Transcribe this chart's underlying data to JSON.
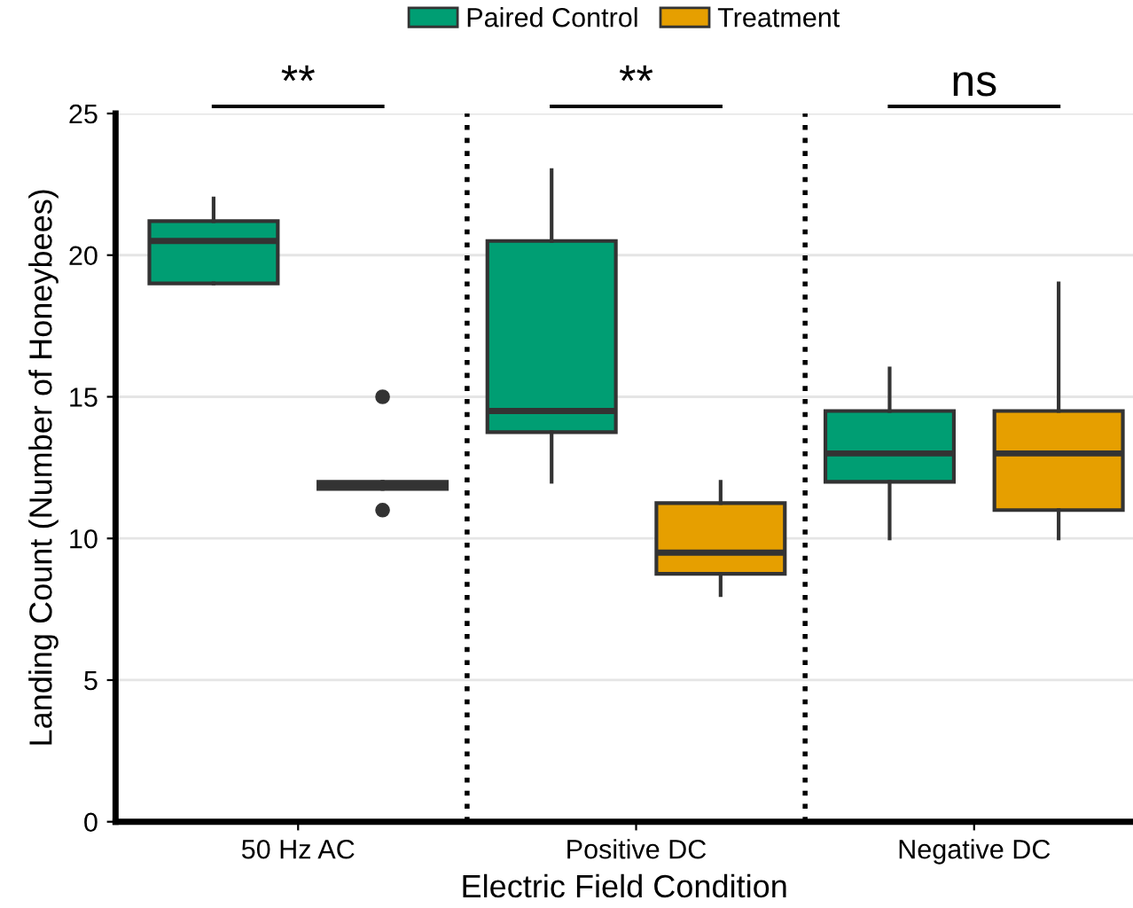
{
  "chart_data": {
    "type": "box",
    "xlabel": "Electric Field Condition",
    "ylabel": "Landing Count (Number of Honeybees)",
    "categories": [
      "50 Hz AC",
      "Positive DC",
      "Negative DC"
    ],
    "series": [
      {
        "name": "Paired Control",
        "color": "#009e73",
        "boxes": [
          {
            "low": 19,
            "q1": 19,
            "median": 20.5,
            "q3": 21.2,
            "high": 22
          },
          {
            "low": 12,
            "q1": 13.75,
            "median": 14.5,
            "q3": 20.5,
            "high": 23
          },
          {
            "low": 10,
            "q1": 12,
            "median": 13,
            "q3": 14.5,
            "high": 16
          }
        ]
      },
      {
        "name": "Treatment",
        "color": "#e69f00",
        "boxes": [
          {
            "low": 11.75,
            "q1": 11.75,
            "median": 11.9,
            "q3": 12,
            "high": 12,
            "outliers": [
              15,
              11
            ]
          },
          {
            "low": 8,
            "q1": 8.75,
            "median": 9.5,
            "q3": 11.25,
            "high": 12
          },
          {
            "low": 10,
            "q1": 11,
            "median": 13,
            "q3": 14.5,
            "high": 19
          }
        ]
      }
    ],
    "ylim": [
      0,
      25
    ],
    "yticks": [
      0,
      5,
      10,
      15,
      20,
      25
    ],
    "grid": "y",
    "legend": "top",
    "annotations": [
      "**",
      "**",
      "ns"
    ]
  }
}
